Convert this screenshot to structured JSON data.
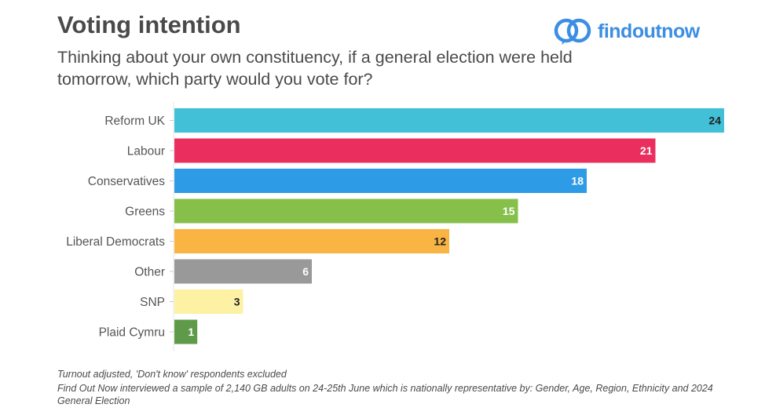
{
  "header": {
    "title": "Voting intention",
    "subtitle": "Thinking about your own constituency, if a general election were held tomorrow, which party would you vote for?"
  },
  "logo": {
    "text": "findoutnow",
    "color": "#3c8ee2",
    "icon": "interlocking-circles-icon"
  },
  "footnotes": {
    "line1": "Turnout adjusted, 'Don't know' respondents excluded",
    "line2": "Find Out Now interviewed a sample of 2,140 GB adults on 24-25th June which is nationally representative by: Gender, Age, Region, Ethnicity and 2024 General Election"
  },
  "chart_data": {
    "type": "bar",
    "orientation": "horizontal",
    "categories": [
      "Reform UK",
      "Labour",
      "Conservatives",
      "Greens",
      "Liberal Democrats",
      "Other",
      "SNP",
      "Plaid Cymru"
    ],
    "values": [
      24,
      21,
      18,
      15,
      12,
      6,
      3,
      1
    ],
    "labels": [
      "24",
      "21",
      "18",
      "15",
      "12",
      "6",
      "3",
      "1"
    ],
    "colors": [
      "#41c0d8",
      "#ea2f5e",
      "#2e9be6",
      "#86c04a",
      "#f9b443",
      "#999999",
      "#fdf2a3",
      "#5f9a4a"
    ],
    "label_colors": [
      "#222222",
      "#ffffff",
      "#ffffff",
      "#ffffff",
      "#222222",
      "#ffffff",
      "#222222",
      "#ffffff"
    ],
    "xlim": [
      0,
      24
    ],
    "grid": false,
    "legend": "none"
  }
}
